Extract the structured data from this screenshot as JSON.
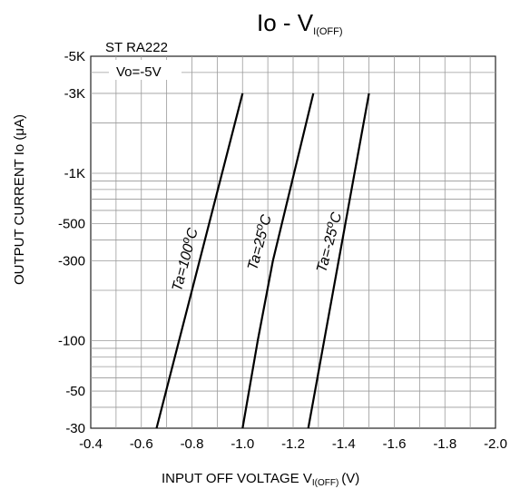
{
  "chart_data": {
    "type": "line",
    "title_main": "Io - V",
    "title_sub": "I(OFF)",
    "subtitle": "ST RA222",
    "annotation": "Vo=-5V",
    "xlabel_main": "INPUT OFF VOLTAGE V",
    "xlabel_sub": "I(OFF)",
    "xlabel_unit": "(V)",
    "ylabel": "OUTPUT CURRENT Io (μA)",
    "x_scale": "linear",
    "y_scale": "log",
    "xlim": [
      -0.4,
      -2.0
    ],
    "ylim_magnitude": [
      30,
      5000
    ],
    "grid": true,
    "x_ticks": [
      {
        "value": -0.4,
        "label": "-0.4"
      },
      {
        "value": -0.6,
        "label": "-0.6"
      },
      {
        "value": -0.8,
        "label": "-0.8"
      },
      {
        "value": -1.0,
        "label": "-1.0"
      },
      {
        "value": -1.2,
        "label": "-1.2"
      },
      {
        "value": -1.4,
        "label": "-1.4"
      },
      {
        "value": -1.6,
        "label": "-1.6"
      },
      {
        "value": -1.8,
        "label": "-1.8"
      },
      {
        "value": -2.0,
        "label": "-2.0"
      }
    ],
    "y_ticks": [
      {
        "value": 5000,
        "label": "-5K"
      },
      {
        "value": 3000,
        "label": "-3K"
      },
      {
        "value": 1000,
        "label": "-1K"
      },
      {
        "value": 500,
        "label": "-500"
      },
      {
        "value": 300,
        "label": "-300"
      },
      {
        "value": 100,
        "label": "-100"
      },
      {
        "value": 50,
        "label": "-50"
      },
      {
        "value": 30,
        "label": "-30"
      }
    ],
    "series": [
      {
        "name": "Ta=100°C",
        "label_prefix": "Ta=100",
        "label_sup": "o",
        "label_suffix": "C",
        "x": [
          -0.66,
          -1.0
        ],
        "y": [
          30,
          3000
        ]
      },
      {
        "name": "Ta=25°C",
        "label_prefix": "Ta=25",
        "label_sup": "o",
        "label_suffix": "C",
        "x": [
          -1.0,
          -1.06,
          -1.12,
          -1.28
        ],
        "y": [
          30,
          100,
          300,
          3000
        ]
      },
      {
        "name": "Ta=-25°C",
        "label_prefix": "Ta=-25",
        "label_sup": "o",
        "label_suffix": "C",
        "x": [
          -1.26,
          -1.5
        ],
        "y": [
          30,
          3000
        ]
      }
    ]
  }
}
